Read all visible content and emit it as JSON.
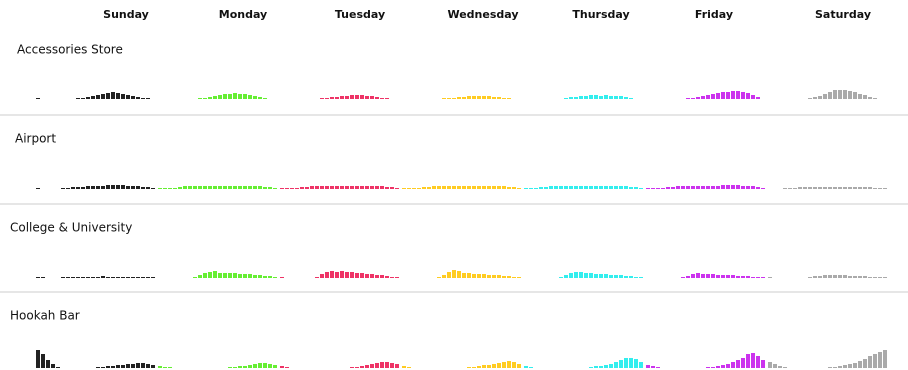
{
  "chart_data": {
    "type": "bar",
    "days": [
      "Sunday",
      "Monday",
      "Tuesday",
      "Wednesday",
      "Thursday",
      "Friday",
      "Saturday"
    ],
    "colors": [
      "#222222",
      "#66ee33",
      "#ee3366",
      "#ffcc22",
      "#33eeee",
      "#cc33ee",
      "#aaaaaa"
    ],
    "ylim": [
      0,
      20
    ],
    "panels": [
      {
        "title": "Accessories Store",
        "values": [
          [
            1,
            0,
            0,
            0,
            0,
            0,
            0,
            0,
            1,
            1,
            2,
            3,
            4,
            5,
            6,
            7,
            6,
            5,
            4,
            3,
            2,
            1,
            1,
            0
          ],
          [
            0,
            0,
            0,
            0,
            0,
            0,
            0,
            0,
            1,
            1,
            2,
            3,
            4,
            5,
            5,
            6,
            5,
            5,
            4,
            3,
            2,
            1,
            0,
            0
          ],
          [
            0,
            0,
            0,
            0,
            0,
            0,
            0,
            0,
            1,
            1,
            2,
            2,
            3,
            3,
            4,
            4,
            4,
            3,
            3,
            2,
            1,
            1,
            0,
            0
          ],
          [
            0,
            0,
            0,
            0,
            0,
            0,
            0,
            0,
            1,
            1,
            1,
            2,
            2,
            3,
            3,
            3,
            3,
            3,
            2,
            2,
            1,
            1,
            0,
            0
          ],
          [
            0,
            0,
            0,
            0,
            0,
            0,
            0,
            0,
            1,
            2,
            2,
            3,
            3,
            4,
            4,
            3,
            4,
            3,
            3,
            3,
            2,
            1,
            0,
            0
          ],
          [
            0,
            0,
            0,
            0,
            0,
            0,
            0,
            0,
            1,
            1,
            2,
            3,
            4,
            5,
            6,
            7,
            7,
            8,
            8,
            7,
            6,
            4,
            2,
            0
          ],
          [
            0,
            0,
            0,
            0,
            0,
            0,
            0,
            0,
            1,
            2,
            3,
            5,
            7,
            9,
            9,
            9,
            8,
            7,
            5,
            4,
            2,
            1,
            0,
            0
          ]
        ]
      },
      {
        "title": "Airport",
        "values": [
          [
            1,
            0,
            0,
            0,
            0,
            1,
            1,
            2,
            2,
            2,
            3,
            3,
            3,
            3,
            4,
            4,
            4,
            4,
            3,
            3,
            3,
            2,
            2,
            1
          ],
          [
            1,
            1,
            1,
            1,
            2,
            3,
            3,
            3,
            3,
            3,
            3,
            3,
            3,
            3,
            3,
            3,
            3,
            3,
            3,
            3,
            3,
            2,
            2,
            1
          ],
          [
            1,
            1,
            1,
            1,
            2,
            2,
            3,
            3,
            3,
            3,
            3,
            3,
            3,
            3,
            3,
            3,
            3,
            3,
            3,
            3,
            3,
            2,
            2,
            1
          ],
          [
            1,
            1,
            1,
            1,
            2,
            2,
            3,
            3,
            3,
            3,
            3,
            3,
            3,
            3,
            3,
            3,
            3,
            3,
            3,
            3,
            3,
            2,
            2,
            1
          ],
          [
            1,
            1,
            1,
            2,
            2,
            3,
            3,
            3,
            3,
            3,
            3,
            3,
            3,
            3,
            3,
            3,
            3,
            3,
            3,
            3,
            3,
            2,
            2,
            1
          ],
          [
            1,
            1,
            1,
            1,
            2,
            2,
            3,
            3,
            3,
            3,
            3,
            3,
            3,
            3,
            3,
            4,
            4,
            4,
            4,
            3,
            3,
            3,
            2,
            1
          ],
          [
            0,
            0,
            0,
            1,
            1,
            1,
            2,
            2,
            2,
            2,
            2,
            2,
            2,
            2,
            2,
            2,
            2,
            2,
            2,
            2,
            2,
            1,
            1,
            1
          ]
        ]
      },
      {
        "title": "College & University",
        "values": [
          [
            1,
            1,
            0,
            0,
            0,
            1,
            1,
            1,
            1,
            1,
            1,
            1,
            1,
            2,
            1,
            1,
            1,
            1,
            1,
            1,
            1,
            1,
            1,
            1
          ],
          [
            0,
            0,
            0,
            0,
            0,
            0,
            0,
            1,
            3,
            5,
            6,
            7,
            5,
            5,
            5,
            5,
            4,
            4,
            4,
            3,
            3,
            2,
            2,
            1
          ],
          [
            1,
            0,
            0,
            0,
            0,
            0,
            0,
            1,
            4,
            6,
            7,
            6,
            7,
            6,
            6,
            5,
            5,
            4,
            4,
            3,
            3,
            2,
            1,
            1
          ],
          [
            0,
            0,
            0,
            0,
            0,
            0,
            0,
            1,
            3,
            6,
            8,
            7,
            5,
            5,
            4,
            4,
            4,
            3,
            3,
            3,
            2,
            2,
            1,
            1
          ],
          [
            0,
            0,
            0,
            0,
            0,
            0,
            0,
            1,
            3,
            5,
            6,
            6,
            5,
            5,
            4,
            4,
            4,
            3,
            3,
            3,
            2,
            2,
            1,
            1
          ],
          [
            0,
            0,
            0,
            0,
            0,
            0,
            0,
            1,
            2,
            4,
            5,
            4,
            4,
            4,
            3,
            3,
            3,
            3,
            2,
            2,
            2,
            1,
            1,
            1
          ],
          [
            1,
            0,
            0,
            0,
            0,
            0,
            0,
            0,
            1,
            2,
            2,
            3,
            3,
            3,
            3,
            3,
            2,
            2,
            2,
            2,
            1,
            1,
            1,
            1
          ]
        ]
      },
      {
        "title": "Hookah Bar",
        "values": [
          [
            18,
            14,
            8,
            4,
            1,
            0,
            0,
            0,
            0,
            0,
            0,
            0,
            1,
            1,
            2,
            2,
            3,
            3,
            4,
            4,
            5,
            5,
            4,
            3
          ],
          [
            2,
            1,
            1,
            0,
            0,
            0,
            0,
            0,
            0,
            0,
            0,
            0,
            0,
            0,
            1,
            1,
            2,
            2,
            3,
            4,
            5,
            5,
            4,
            3
          ],
          [
            2,
            1,
            0,
            0,
            0,
            0,
            0,
            0,
            0,
            0,
            0,
            0,
            0,
            0,
            1,
            1,
            2,
            3,
            4,
            5,
            6,
            6,
            5,
            4
          ],
          [
            2,
            1,
            0,
            0,
            0,
            0,
            0,
            0,
            0,
            0,
            0,
            0,
            0,
            1,
            1,
            2,
            3,
            3,
            4,
            5,
            6,
            7,
            6,
            4
          ],
          [
            2,
            1,
            0,
            0,
            0,
            0,
            0,
            0,
            0,
            0,
            0,
            0,
            0,
            1,
            2,
            2,
            3,
            4,
            6,
            8,
            10,
            10,
            9,
            6
          ],
          [
            3,
            2,
            1,
            0,
            0,
            0,
            0,
            0,
            0,
            0,
            0,
            0,
            1,
            1,
            2,
            3,
            4,
            6,
            8,
            10,
            14,
            15,
            12,
            8
          ],
          [
            6,
            4,
            2,
            1,
            0,
            0,
            0,
            0,
            0,
            0,
            0,
            0,
            1,
            1,
            2,
            3,
            4,
            5,
            7,
            9,
            12,
            14,
            16,
            18
          ]
        ]
      }
    ]
  }
}
